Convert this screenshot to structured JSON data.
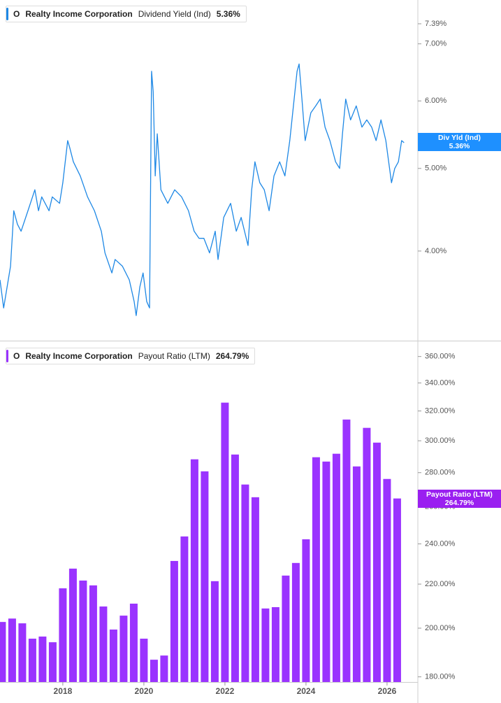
{
  "chart_data": [
    {
      "type": "line",
      "log_scale": true,
      "color": "#1e88e5",
      "legend": {
        "ticker": "O",
        "company": "Realty Income Corporation",
        "metric": "Dividend Yield (Ind)",
        "value": "5.36%"
      },
      "badge_label": "Div Yld (Ind)",
      "xlim": [
        2016.45,
        2026.76
      ],
      "ylim": [
        3.14,
        7.88
      ],
      "yticks": [
        {
          "value": 4,
          "label": "4.00%"
        },
        {
          "value": 5,
          "label": "5.00%"
        },
        {
          "value": 6,
          "label": "6.00%"
        },
        {
          "value": 7,
          "label": "7.00%"
        },
        {
          "value": 7.39,
          "label": "7.39%"
        }
      ],
      "x": [
        2016.45,
        2016.54,
        2016.71,
        2016.79,
        2016.88,
        2016.97,
        2017.14,
        2017.31,
        2017.4,
        2017.48,
        2017.66,
        2017.74,
        2017.92,
        2018.0,
        2018.12,
        2018.17,
        2018.26,
        2018.43,
        2018.61,
        2018.78,
        2018.95,
        2019.04,
        2019.21,
        2019.29,
        2019.47,
        2019.64,
        2019.76,
        2019.81,
        2019.9,
        2019.98,
        2020.07,
        2020.14,
        2020.19,
        2020.23,
        2020.28,
        2020.33,
        2020.42,
        2020.59,
        2020.76,
        2020.93,
        2021.1,
        2021.24,
        2021.36,
        2021.48,
        2021.62,
        2021.76,
        2021.83,
        2021.97,
        2022.14,
        2022.28,
        2022.4,
        2022.57,
        2022.66,
        2022.74,
        2022.86,
        2022.97,
        2023.09,
        2023.21,
        2023.35,
        2023.48,
        2023.6,
        2023.69,
        2023.78,
        2023.83,
        2023.9,
        2023.98,
        2024.12,
        2024.24,
        2024.35,
        2024.47,
        2024.59,
        2024.73,
        2024.83,
        2024.9,
        2024.98,
        2025.1,
        2025.24,
        2025.38,
        2025.5,
        2025.62,
        2025.73,
        2025.85,
        2025.97,
        2026.04,
        2026.11,
        2026.19,
        2026.28,
        2026.36,
        2026.42
      ],
      "values": [
        3.7,
        3.43,
        3.84,
        4.46,
        4.3,
        4.22,
        4.46,
        4.72,
        4.46,
        4.63,
        4.46,
        4.63,
        4.55,
        4.81,
        5.39,
        5.29,
        5.09,
        4.9,
        4.63,
        4.46,
        4.22,
        3.98,
        3.77,
        3.91,
        3.84,
        3.7,
        3.49,
        3.36,
        3.63,
        3.77,
        3.49,
        3.43,
        6.5,
        6.15,
        4.9,
        5.49,
        4.72,
        4.55,
        4.72,
        4.63,
        4.46,
        4.22,
        4.14,
        4.14,
        3.98,
        4.22,
        3.91,
        4.38,
        4.55,
        4.22,
        4.38,
        4.06,
        4.72,
        5.09,
        4.81,
        4.72,
        4.46,
        4.9,
        5.09,
        4.9,
        5.39,
        5.92,
        6.5,
        6.63,
        6.03,
        5.39,
        5.81,
        5.92,
        6.03,
        5.59,
        5.39,
        5.09,
        5.0,
        5.49,
        6.03,
        5.7,
        5.92,
        5.59,
        5.7,
        5.59,
        5.39,
        5.7,
        5.39,
        5.09,
        4.81,
        5.0,
        5.09,
        5.39,
        5.36
      ]
    },
    {
      "type": "bar",
      "log_scale": true,
      "color": "#9a33ff",
      "legend": {
        "ticker": "O",
        "company": "Realty Income Corporation",
        "metric": "Payout Ratio (LTM)",
        "value": "264.79%"
      },
      "xlim": [
        2016.45,
        2026.76
      ],
      "ylim": [
        178,
        372
      ],
      "xticks": [
        2018,
        2020,
        2022,
        2024,
        2026
      ],
      "yticks": [
        {
          "value": 180,
          "label": "180.00%"
        },
        {
          "value": 200,
          "label": "200.00%"
        },
        {
          "value": 220,
          "label": "220.00%"
        },
        {
          "value": 240,
          "label": "240.00%"
        },
        {
          "value": 260,
          "label": "260.00%"
        },
        {
          "value": 280,
          "label": "280.00%"
        },
        {
          "value": 300,
          "label": "300.00%"
        },
        {
          "value": 320,
          "label": "320.00%"
        },
        {
          "value": 340,
          "label": "340.00%"
        },
        {
          "value": 360,
          "label": "360.00%"
        }
      ],
      "x": [
        2016.5,
        2016.75,
        2017.0,
        2017.25,
        2017.5,
        2017.75,
        2018.0,
        2018.25,
        2018.5,
        2018.75,
        2019.0,
        2019.25,
        2019.5,
        2019.75,
        2020.0,
        2020.25,
        2020.5,
        2020.75,
        2021.0,
        2021.25,
        2021.5,
        2021.75,
        2022.0,
        2022.25,
        2022.5,
        2022.75,
        2023.0,
        2023.25,
        2023.5,
        2023.75,
        2024.0,
        2024.25,
        2024.5,
        2024.75,
        2025.0,
        2025.25,
        2025.5,
        2025.75,
        2026.0,
        2026.25
      ],
      "values": [
        202.7,
        204.2,
        202.1,
        195.5,
        196.4,
        194.0,
        218.0,
        227.5,
        221.7,
        219.4,
        209.6,
        199.4,
        205.5,
        210.9,
        195.5,
        186.8,
        188.5,
        231.3,
        243.9,
        288.2,
        280.8,
        221.4,
        325.8,
        291.2,
        272.9,
        265.5,
        208.7,
        209.3,
        224.1,
        230.3,
        242.4,
        289.5,
        286.8,
        291.7,
        314.1,
        283.8,
        308.5,
        298.8,
        276.2,
        264.79
      ]
    }
  ]
}
